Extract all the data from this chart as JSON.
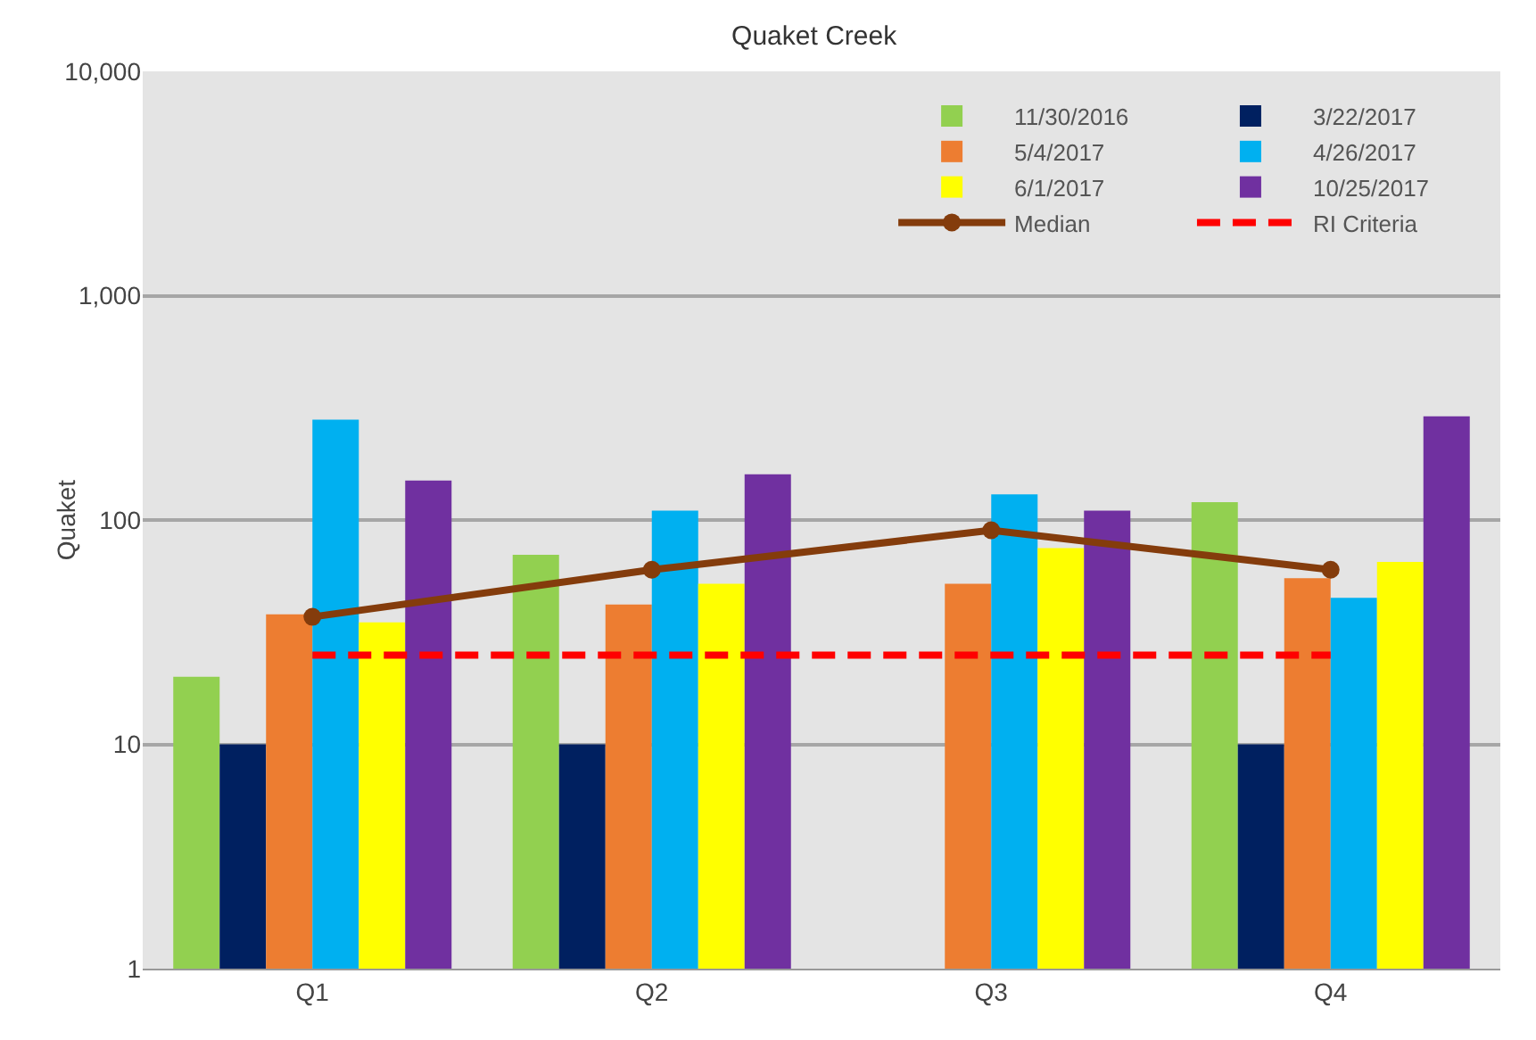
{
  "chart_data": {
    "type": "bar",
    "title": "Quaket Creek",
    "ylabel": "Quaket",
    "categories": [
      "Q1",
      "Q2",
      "Q3",
      "Q4"
    ],
    "series": [
      {
        "name": "11/30/2016",
        "color": "#92d050",
        "values": [
          20,
          70,
          null,
          120
        ]
      },
      {
        "name": "3/22/2017",
        "color": "#002060",
        "values": [
          10,
          10,
          null,
          10
        ]
      },
      {
        "name": "5/4/2017",
        "color": "#ed7d31",
        "values": [
          38,
          42,
          52,
          55
        ]
      },
      {
        "name": "4/26/2017",
        "color": "#00b0f0",
        "values": [
          280,
          110,
          130,
          45
        ]
      },
      {
        "name": "6/1/2017",
        "color": "#ffff00",
        "values": [
          35,
          52,
          75,
          65
        ]
      },
      {
        "name": "10/25/2017",
        "color": "#7030a0",
        "values": [
          150,
          160,
          110,
          290
        ]
      },
      {
        "name": "Median",
        "type": "line",
        "color": "#843c0c",
        "marker": "circle",
        "line_style": "solid",
        "values": [
          37,
          60,
          90,
          60
        ]
      },
      {
        "name": "RI Criteria",
        "type": "line",
        "color": "#ff0000",
        "marker": "none",
        "line_style": "dashed",
        "values": [
          25,
          25,
          25,
          25
        ]
      }
    ],
    "log": true,
    "ylim": [
      1,
      10000
    ],
    "yticks": [
      1,
      10,
      100,
      {
        "value": 1000,
        "label": "1,000"
      },
      {
        "value": 10000,
        "label": "10,000"
      }
    ],
    "grid": "y",
    "legend": "top right"
  }
}
